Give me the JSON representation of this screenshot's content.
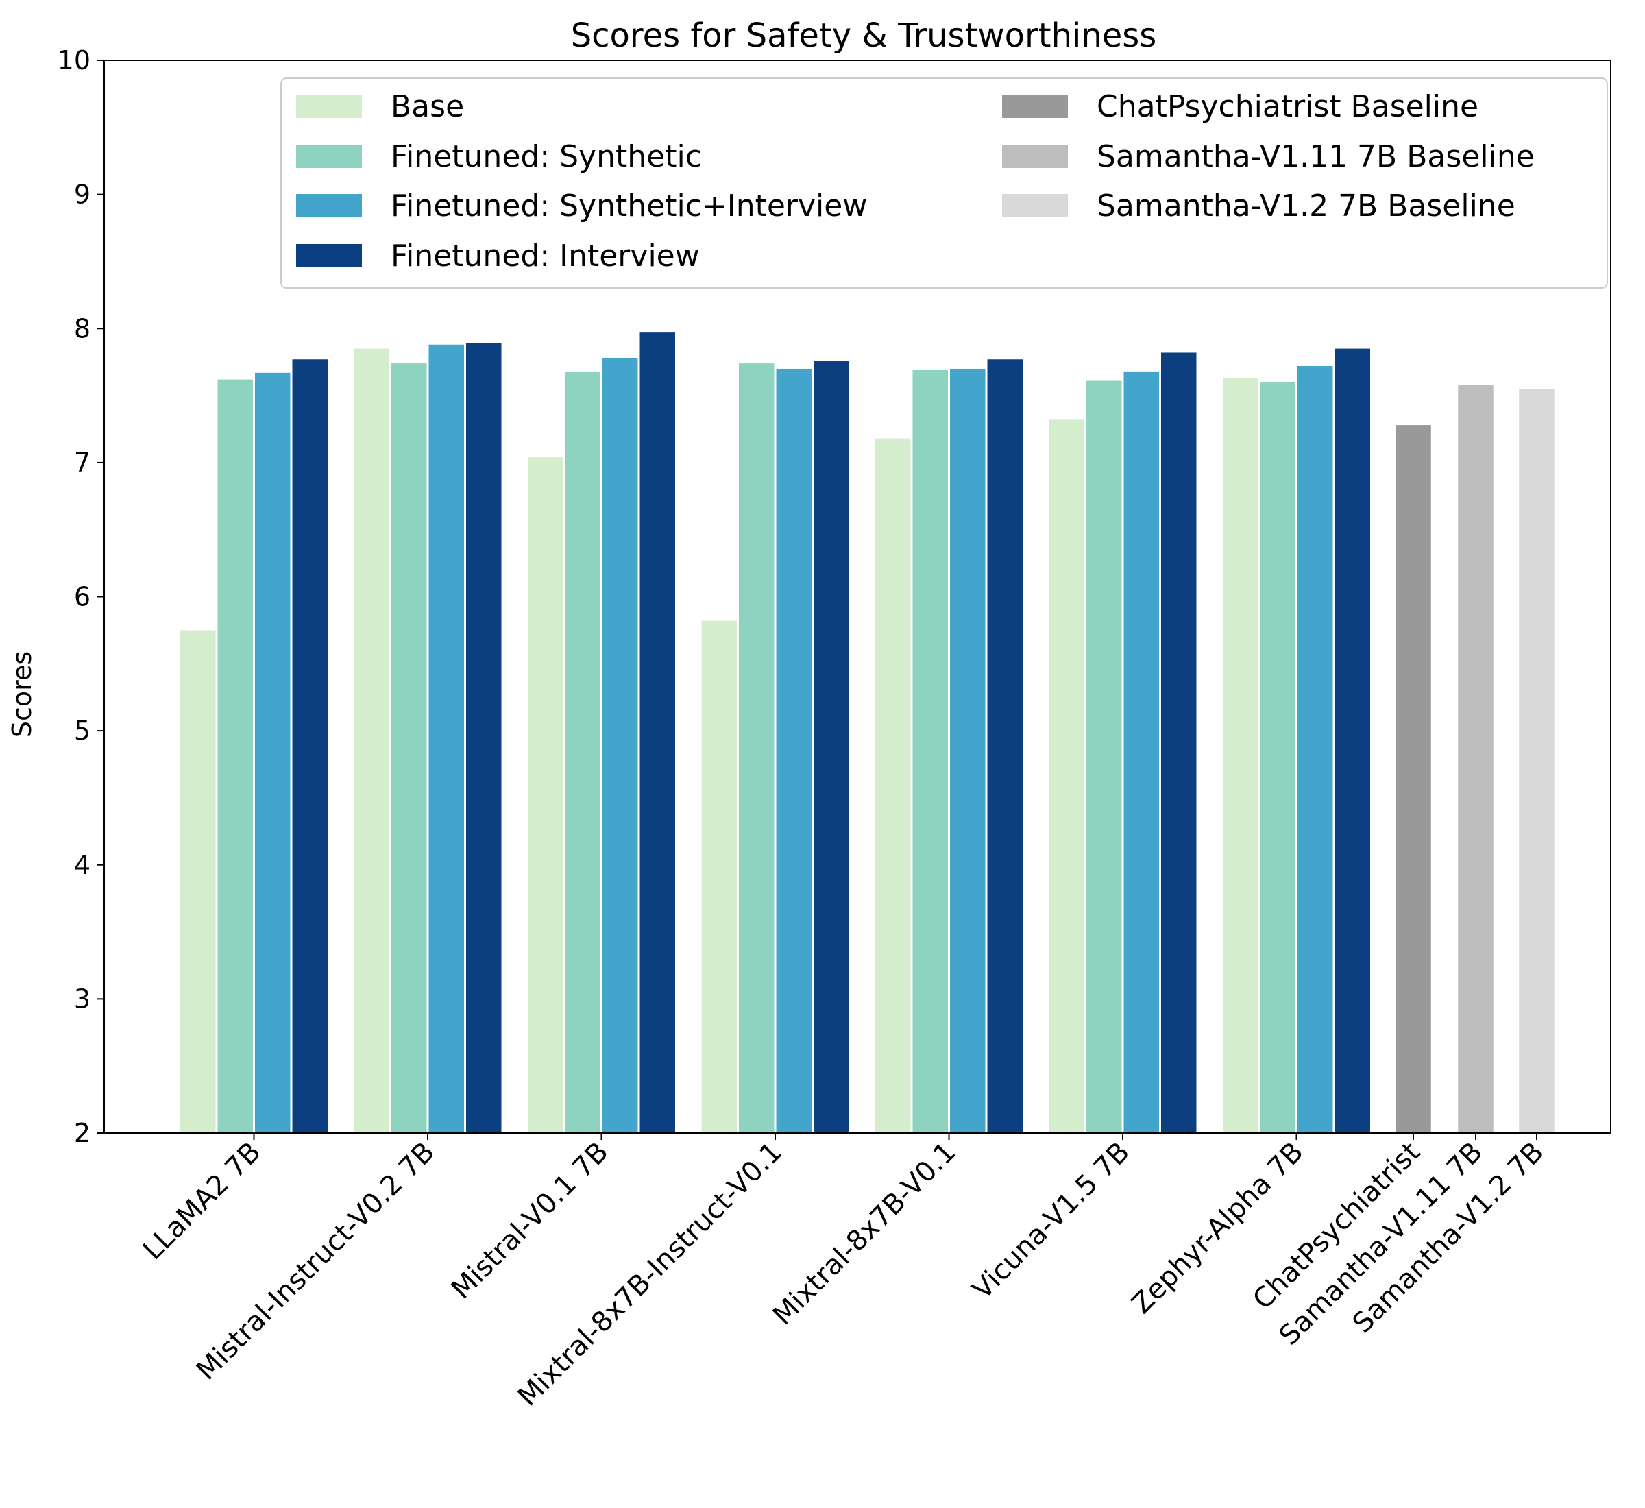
{
  "chart_data": {
    "type": "bar",
    "title": "Scores for Safety & Trustworthiness",
    "xlabel": "",
    "ylabel": "Scores",
    "ylim": [
      2,
      10
    ],
    "yticks": [
      "2",
      "3",
      "4",
      "5",
      "6",
      "7",
      "8",
      "9",
      "10"
    ],
    "grid": false,
    "legend_position": "top-right",
    "categories": [
      "LLaMA2 7B",
      "Mistral-Instruct-V0.2 7B",
      "Mistral-V0.1 7B",
      "Mixtral-8x7B-Instruct-V0.1",
      "Mixtral-8x7B-V0.1",
      "Vicuna-V1.5 7B",
      "Zephyr-Alpha 7B"
    ],
    "series": [
      {
        "name": "Base",
        "color": "#d4eecd",
        "values": [
          5.75,
          7.85,
          7.04,
          5.82,
          7.18,
          7.32,
          7.63
        ]
      },
      {
        "name": "Finetuned: Synthetic",
        "color": "#8dd3bf",
        "values": [
          7.62,
          7.74,
          7.68,
          7.74,
          7.69,
          7.61,
          7.6
        ]
      },
      {
        "name": "Finetuned: Synthetic+Interview",
        "color": "#43a4cc",
        "values": [
          7.67,
          7.88,
          7.78,
          7.7,
          7.7,
          7.68,
          7.72
        ]
      },
      {
        "name": "Finetuned: Interview",
        "color": "#0b3f7f",
        "values": [
          7.77,
          7.89,
          7.97,
          7.76,
          7.77,
          7.82,
          7.85
        ]
      }
    ],
    "baselines": [
      {
        "name": "ChatPsychiatrist Baseline",
        "tick_label": "ChatPsychiatrist",
        "color": "#999999",
        "value": 7.28
      },
      {
        "name": "Samantha-V1.11 7B Baseline",
        "tick_label": "Samantha-V1.11 7B",
        "color": "#bdbdbd",
        "value": 7.58
      },
      {
        "name": "Samantha-V1.2 7B Baseline",
        "tick_label": "Samantha-V1.2 7B",
        "color": "#d9d9d9",
        "value": 7.55
      }
    ]
  }
}
